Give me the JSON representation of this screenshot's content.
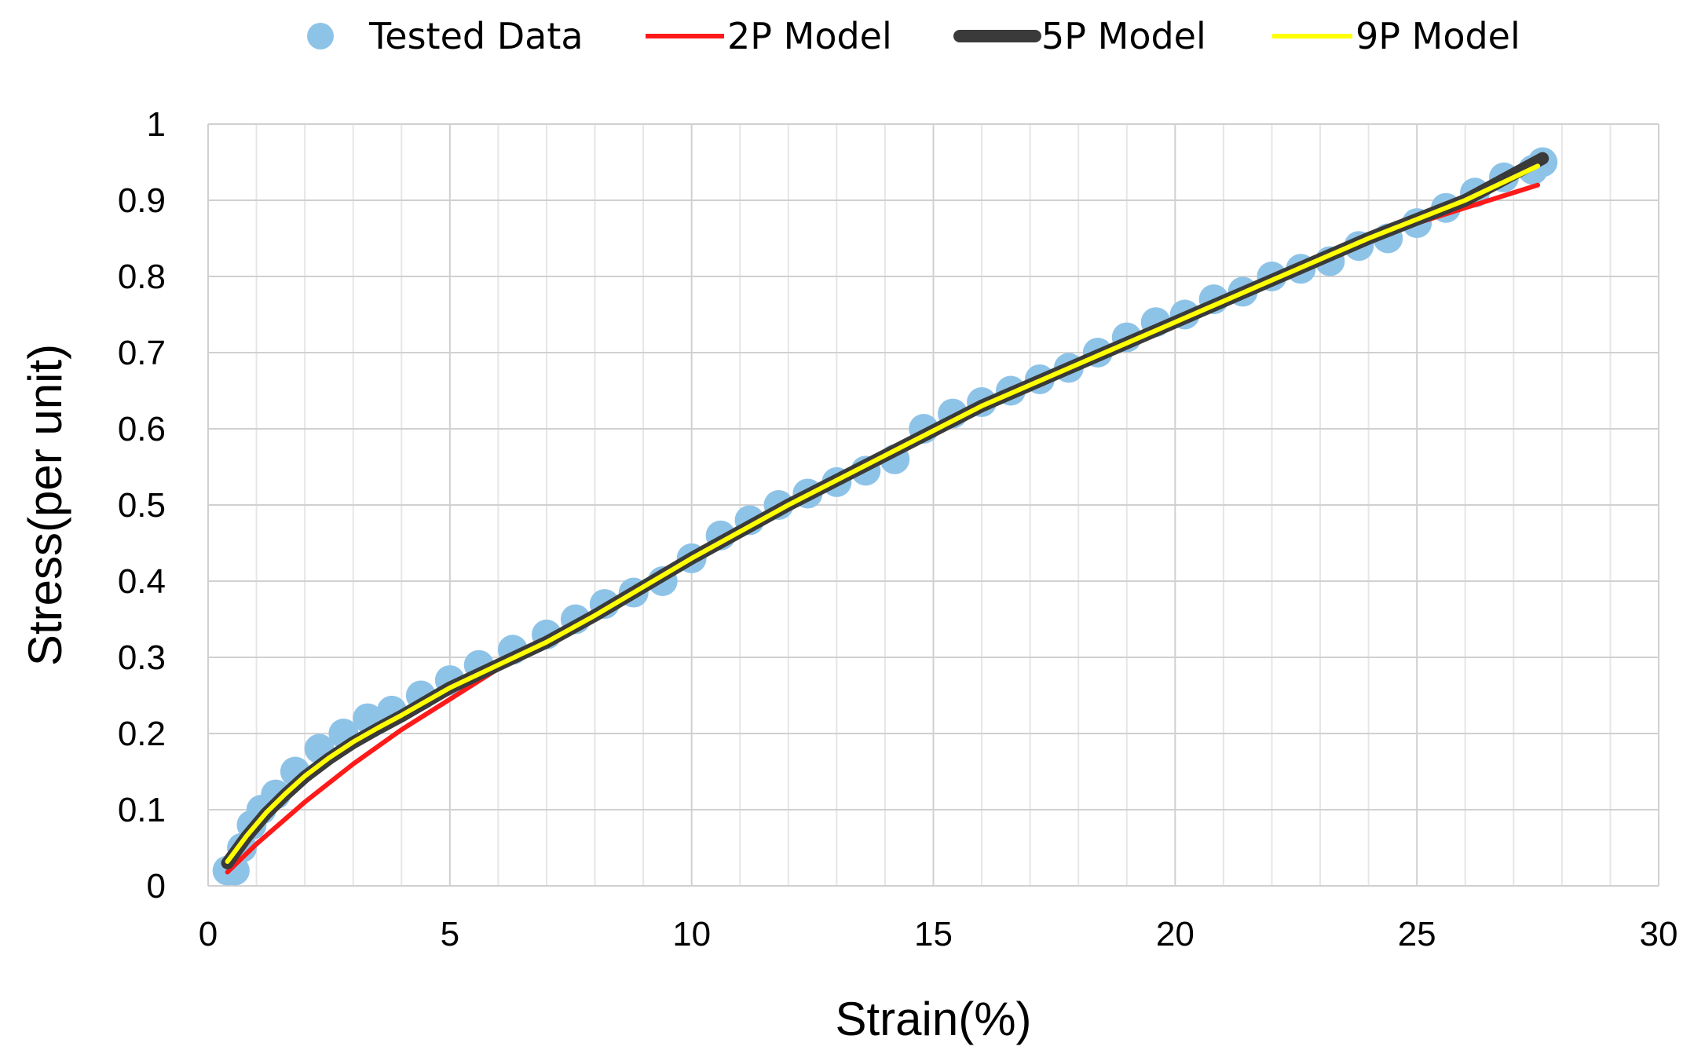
{
  "chart_data": {
    "type": "scatter+line",
    "title": "",
    "xlabel": "Strain(%)",
    "ylabel": "Stress(per unit)",
    "xlim": [
      0,
      30
    ],
    "ylim": [
      0,
      1
    ],
    "grid": true,
    "legend_position": "top",
    "x_ticks": [
      "0",
      "5",
      "10",
      "15",
      "20",
      "25",
      "30"
    ],
    "y_ticks": [
      "0",
      "0.1",
      "0.2",
      "0.3",
      "0.4",
      "0.5",
      "0.6",
      "0.7",
      "0.8",
      "0.9",
      "1"
    ],
    "series": [
      {
        "name": "Tested Data",
        "kind": "scatter",
        "color": "#8EC3E8",
        "x": [
          0.4,
          0.55,
          0.7,
          0.9,
          1.1,
          1.4,
          1.8,
          2.3,
          2.8,
          3.3,
          3.8,
          4.4,
          5.0,
          5.6,
          6.3,
          7.0,
          7.6,
          8.2,
          8.8,
          9.4,
          10.0,
          10.6,
          11.2,
          11.8,
          12.4,
          13.0,
          13.6,
          14.2,
          14.8,
          15.4,
          16.0,
          16.6,
          17.2,
          17.8,
          18.4,
          19.0,
          19.6,
          20.2,
          20.8,
          21.4,
          22.0,
          22.6,
          23.2,
          23.8,
          24.4,
          25.0,
          25.6,
          26.2,
          26.8,
          27.4,
          27.6
        ],
        "y": [
          0.02,
          0.02,
          0.05,
          0.08,
          0.1,
          0.12,
          0.15,
          0.18,
          0.2,
          0.22,
          0.23,
          0.25,
          0.27,
          0.29,
          0.31,
          0.33,
          0.35,
          0.37,
          0.385,
          0.4,
          0.43,
          0.46,
          0.48,
          0.5,
          0.515,
          0.53,
          0.545,
          0.56,
          0.6,
          0.62,
          0.635,
          0.65,
          0.665,
          0.68,
          0.7,
          0.72,
          0.74,
          0.75,
          0.77,
          0.78,
          0.8,
          0.81,
          0.82,
          0.84,
          0.85,
          0.87,
          0.89,
          0.91,
          0.93,
          0.94,
          0.95
        ]
      },
      {
        "name": "2P Model",
        "kind": "line",
        "color": "#FF1A1A",
        "x": [
          0.4,
          1,
          2,
          3,
          4,
          5,
          6,
          7,
          8,
          10,
          12,
          14,
          16,
          18,
          20,
          22,
          24,
          25,
          26,
          27.5
        ],
        "y": [
          0.018,
          0.055,
          0.11,
          0.16,
          0.205,
          0.245,
          0.285,
          0.32,
          0.355,
          0.43,
          0.505,
          0.57,
          0.635,
          0.69,
          0.745,
          0.795,
          0.845,
          0.87,
          0.89,
          0.92
        ]
      },
      {
        "name": "5P Model",
        "kind": "line",
        "color": "#3A3A3A",
        "x": [
          0.4,
          0.8,
          1.2,
          1.6,
          2,
          2.5,
          3,
          3.5,
          4,
          5,
          6,
          7,
          8,
          10,
          12,
          14,
          16,
          18,
          20,
          22,
          24,
          26,
          27.6
        ],
        "y": [
          0.03,
          0.065,
          0.095,
          0.12,
          0.143,
          0.167,
          0.188,
          0.206,
          0.223,
          0.26,
          0.29,
          0.32,
          0.355,
          0.43,
          0.5,
          0.565,
          0.63,
          0.685,
          0.74,
          0.795,
          0.85,
          0.9,
          0.955
        ]
      },
      {
        "name": "9P Model",
        "kind": "line",
        "color": "#FFFF00",
        "x": [
          0.4,
          0.8,
          1.2,
          1.6,
          2,
          2.5,
          3,
          3.5,
          4,
          5,
          6,
          7,
          8,
          10,
          12,
          14,
          16,
          18,
          20,
          22,
          24,
          26,
          27.5
        ],
        "y": [
          0.032,
          0.066,
          0.096,
          0.121,
          0.144,
          0.168,
          0.189,
          0.207,
          0.224,
          0.26,
          0.29,
          0.32,
          0.355,
          0.43,
          0.5,
          0.565,
          0.63,
          0.685,
          0.74,
          0.795,
          0.85,
          0.9,
          0.945
        ]
      }
    ]
  }
}
